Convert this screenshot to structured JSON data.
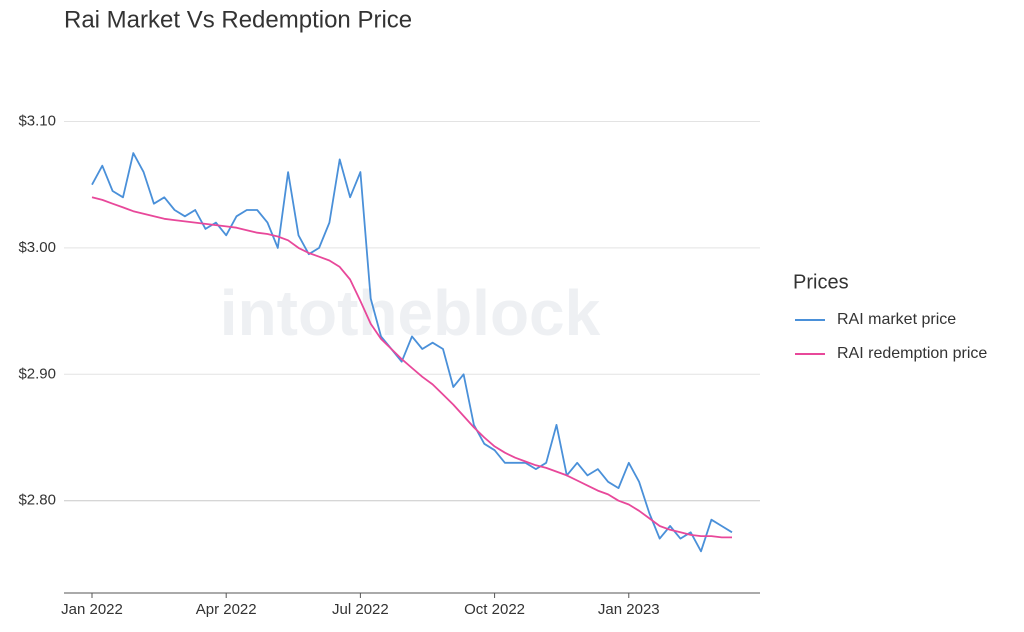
{
  "chart_data": {
    "type": "line",
    "title": "Rai Market Vs Redemption Price",
    "watermark": "intotheblock",
    "legend_title": "Prices",
    "legend_position": "right",
    "grid": true,
    "categories": [
      "Jan 2022",
      null,
      null,
      null,
      null,
      null,
      null,
      null,
      null,
      null,
      null,
      null,
      null,
      "Apr 2022",
      null,
      null,
      null,
      null,
      null,
      null,
      null,
      null,
      null,
      null,
      null,
      null,
      "Jul 2022",
      null,
      null,
      null,
      null,
      null,
      null,
      null,
      null,
      null,
      null,
      null,
      null,
      "Oct 2022",
      null,
      null,
      null,
      null,
      null,
      null,
      null,
      null,
      null,
      null,
      null,
      null,
      "Jan 2023",
      null,
      null,
      null,
      null,
      null,
      null,
      null,
      null,
      null,
      null
    ],
    "ylim": [
      2.727,
      3.117
    ],
    "yticks": [
      {
        "value": 2.8,
        "label": "$2.80"
      },
      {
        "value": 2.9,
        "label": "$2.90"
      },
      {
        "value": 3.0,
        "label": "$3.00"
      },
      {
        "value": 3.1,
        "label": "$3.10"
      }
    ],
    "series": [
      {
        "name": "RAI market price",
        "color": "#4a90d9",
        "values": [
          3.05,
          3.065,
          3.045,
          3.04,
          3.075,
          3.06,
          3.035,
          3.04,
          3.03,
          3.025,
          3.03,
          3.015,
          3.02,
          3.01,
          3.025,
          3.03,
          3.03,
          3.02,
          3.0,
          3.06,
          3.01,
          2.995,
          3.0,
          3.02,
          3.07,
          3.04,
          3.06,
          2.96,
          2.93,
          2.92,
          2.91,
          2.93,
          2.92,
          2.925,
          2.92,
          2.89,
          2.9,
          2.86,
          2.845,
          2.84,
          2.83,
          2.83,
          2.83,
          2.825,
          2.83,
          2.86,
          2.82,
          2.83,
          2.82,
          2.825,
          2.815,
          2.81,
          2.83,
          2.815,
          2.79,
          2.77,
          2.78,
          2.77,
          2.775,
          2.76,
          2.785,
          2.78,
          2.775
        ]
      },
      {
        "name": "RAI redemption price",
        "color": "#e8489a",
        "values": [
          3.04,
          3.038,
          3.035,
          3.032,
          3.029,
          3.027,
          3.025,
          3.023,
          3.022,
          3.021,
          3.02,
          3.019,
          3.018,
          3.017,
          3.016,
          3.014,
          3.012,
          3.011,
          3.009,
          3.006,
          3.0,
          2.996,
          2.993,
          2.99,
          2.985,
          2.975,
          2.958,
          2.94,
          2.928,
          2.92,
          2.912,
          2.905,
          2.898,
          2.892,
          2.884,
          2.876,
          2.867,
          2.858,
          2.85,
          2.843,
          2.838,
          2.834,
          2.831,
          2.828,
          2.826,
          2.823,
          2.82,
          2.816,
          2.812,
          2.808,
          2.805,
          2.8,
          2.797,
          2.792,
          2.786,
          2.78,
          2.777,
          2.775,
          2.773,
          2.772,
          2.772,
          2.771,
          2.771
        ]
      }
    ]
  }
}
